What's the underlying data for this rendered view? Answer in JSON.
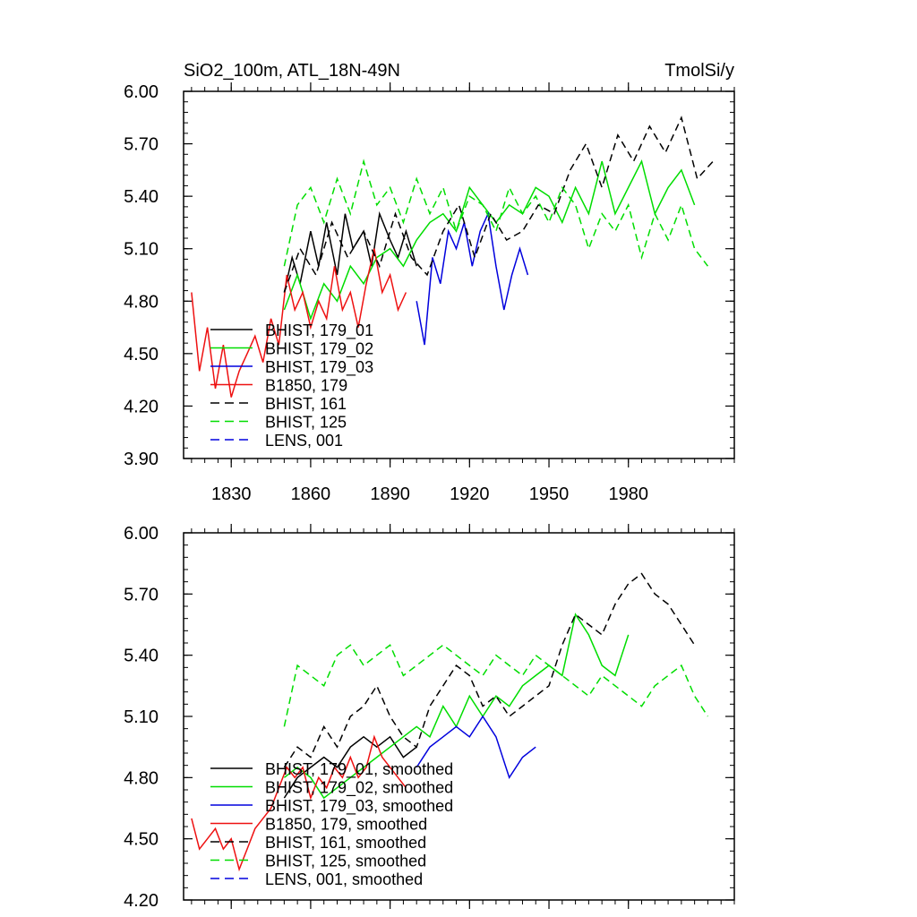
{
  "chart_data": [
    {
      "type": "line",
      "title_left": "SiO2_100m, ATL_18N-49N",
      "title_right": "TmolSi/y",
      "xlabel": "",
      "ylabel": "",
      "xlim": [
        1812,
        2020
      ],
      "ylim": [
        3.9,
        6.0
      ],
      "xticks": [
        1830,
        1860,
        1890,
        1920,
        1950,
        1980
      ],
      "xtick_labels": [
        "1830",
        "1860",
        "1890",
        "1920",
        "1950",
        "1980"
      ],
      "yticks": [
        3.9,
        4.2,
        4.5,
        4.8,
        5.1,
        5.4,
        5.7,
        6.0
      ],
      "ytick_labels": [
        "3.90",
        "4.20",
        "4.50",
        "4.80",
        "5.10",
        "5.40",
        "5.70",
        "6.00"
      ],
      "legend_position": "bottom-left",
      "series": [
        {
          "name": "BHIST, 179_01",
          "color": "#000000",
          "dash": "solid",
          "x": [
            1850,
            1853,
            1856,
            1860,
            1863,
            1866,
            1870,
            1873,
            1876,
            1880,
            1883,
            1886,
            1890,
            1893,
            1896,
            1900
          ],
          "y": [
            4.85,
            5.05,
            4.9,
            5.2,
            5.0,
            5.25,
            4.95,
            5.3,
            5.1,
            5.2,
            5.0,
            5.3,
            5.15,
            5.05,
            5.2,
            5.0
          ]
        },
        {
          "name": "BHIST, 179_02",
          "color": "#00dd00",
          "dash": "solid",
          "x": [
            1850,
            1855,
            1860,
            1865,
            1870,
            1875,
            1880,
            1885,
            1890,
            1895,
            1900,
            1905,
            1910,
            1915,
            1920,
            1925,
            1930,
            1935,
            1940,
            1945,
            1950,
            1955,
            1960,
            1965,
            1970,
            1975,
            1980,
            1985,
            1990,
            1995,
            2000,
            2005
          ],
          "y": [
            4.75,
            4.95,
            4.7,
            4.9,
            4.8,
            5.0,
            4.9,
            5.05,
            5.1,
            5.0,
            5.15,
            5.25,
            5.3,
            5.2,
            5.45,
            5.35,
            5.25,
            5.35,
            5.3,
            5.45,
            5.4,
            5.25,
            5.45,
            5.3,
            5.6,
            5.3,
            5.45,
            5.6,
            5.3,
            5.45,
            5.55,
            5.35
          ]
        },
        {
          "name": "BHIST, 179_03",
          "color": "#0000dd",
          "dash": "solid",
          "x": [
            1900,
            1903,
            1906,
            1909,
            1912,
            1915,
            1918,
            1921,
            1924,
            1927,
            1930,
            1933,
            1936,
            1939,
            1942
          ],
          "y": [
            4.8,
            4.55,
            5.05,
            4.9,
            5.2,
            5.1,
            5.25,
            5.0,
            5.2,
            5.3,
            5.0,
            4.75,
            4.95,
            5.1,
            4.95
          ]
        },
        {
          "name": "B1850, 179",
          "color": "#ee1111",
          "dash": "solid",
          "x": [
            1815,
            1818,
            1821,
            1824,
            1827,
            1830,
            1833,
            1836,
            1839,
            1842,
            1845,
            1848,
            1851,
            1854,
            1857,
            1860,
            1863,
            1866,
            1869,
            1872,
            1875,
            1878,
            1881,
            1884,
            1887,
            1890,
            1893,
            1896
          ],
          "y": [
            4.85,
            4.4,
            4.65,
            4.3,
            4.55,
            4.25,
            4.4,
            4.5,
            4.6,
            4.45,
            4.7,
            4.55,
            4.95,
            4.75,
            4.85,
            4.65,
            4.8,
            4.7,
            5.0,
            4.75,
            4.85,
            4.65,
            4.9,
            5.1,
            4.85,
            4.95,
            4.75,
            4.85
          ]
        },
        {
          "name": "BHIST, 161",
          "color": "#000000",
          "dash": "dashed",
          "x": [
            1850,
            1856,
            1862,
            1868,
            1874,
            1880,
            1886,
            1892,
            1898,
            1904,
            1910,
            1916,
            1922,
            1928,
            1934,
            1940,
            1946,
            1952,
            1958,
            1964,
            1970,
            1976,
            1982,
            1988,
            1994,
            2000,
            2006,
            2012
          ],
          "y": [
            4.85,
            5.1,
            4.95,
            5.25,
            5.05,
            5.2,
            5.0,
            5.3,
            5.05,
            4.95,
            5.2,
            5.35,
            5.05,
            5.3,
            5.15,
            5.2,
            5.35,
            5.3,
            5.55,
            5.7,
            5.45,
            5.75,
            5.6,
            5.8,
            5.65,
            5.85,
            5.5,
            5.6
          ]
        },
        {
          "name": "BHIST, 125",
          "color": "#00dd00",
          "dash": "dashed",
          "x": [
            1850,
            1855,
            1860,
            1865,
            1870,
            1875,
            1880,
            1885,
            1890,
            1895,
            1900,
            1905,
            1910,
            1915,
            1920,
            1925,
            1930,
            1935,
            1940,
            1945,
            1950,
            1955,
            1960,
            1965,
            1970,
            1975,
            1980,
            1985,
            1990,
            1995,
            2000,
            2005,
            2010
          ],
          "y": [
            5.0,
            5.35,
            5.45,
            5.25,
            5.5,
            5.3,
            5.6,
            5.35,
            5.45,
            5.25,
            5.5,
            5.3,
            5.45,
            5.2,
            5.4,
            5.35,
            5.2,
            5.45,
            5.3,
            5.4,
            5.25,
            5.45,
            5.35,
            5.1,
            5.3,
            5.2,
            5.35,
            5.05,
            5.3,
            5.15,
            5.35,
            5.1,
            5.0
          ]
        },
        {
          "name": "LENS, 001",
          "color": "#0000dd",
          "dash": "dashed",
          "x": [],
          "y": []
        }
      ]
    },
    {
      "type": "line",
      "xlabel": "",
      "ylabel": "",
      "xlim": [
        1812,
        2020
      ],
      "ylim": [
        4.2,
        6.0
      ],
      "xticks": [
        1830,
        1860,
        1890,
        1920,
        1950,
        1980
      ],
      "yticks": [
        4.2,
        4.5,
        4.8,
        5.1,
        5.4,
        5.7,
        6.0
      ],
      "ytick_labels": [
        "4.20",
        "4.50",
        "4.80",
        "5.10",
        "5.40",
        "5.70",
        "6.00"
      ],
      "legend_position": "bottom-left",
      "series": [
        {
          "name": "BHIST, 179_01, smoothed",
          "color": "#000000",
          "dash": "solid",
          "x": [
            1850,
            1855,
            1860,
            1865,
            1870,
            1875,
            1880,
            1885,
            1890,
            1895,
            1900
          ],
          "y": [
            4.7,
            4.8,
            4.85,
            4.9,
            4.85,
            4.95,
            5.0,
            4.95,
            5.0,
            4.9,
            4.95
          ]
        },
        {
          "name": "BHIST, 179_02, smoothed",
          "color": "#00dd00",
          "dash": "solid",
          "x": [
            1850,
            1855,
            1860,
            1865,
            1870,
            1875,
            1880,
            1885,
            1890,
            1895,
            1900,
            1905,
            1910,
            1915,
            1920,
            1925,
            1930,
            1935,
            1940,
            1945,
            1950,
            1955,
            1960,
            1965,
            1970,
            1975,
            1980
          ],
          "y": [
            4.8,
            4.85,
            4.8,
            4.7,
            4.75,
            4.8,
            4.85,
            4.9,
            4.95,
            5.0,
            5.05,
            5.0,
            5.15,
            5.05,
            5.2,
            5.1,
            5.2,
            5.15,
            5.25,
            5.3,
            5.35,
            5.3,
            5.6,
            5.5,
            5.35,
            5.3,
            5.5
          ]
        },
        {
          "name": "BHIST, 179_03, smoothed",
          "color": "#0000dd",
          "dash": "solid",
          "x": [
            1900,
            1905,
            1910,
            1915,
            1920,
            1925,
            1930,
            1935,
            1940,
            1945
          ],
          "y": [
            4.85,
            4.95,
            5.0,
            5.05,
            5.0,
            5.1,
            5.0,
            4.8,
            4.9,
            4.95
          ]
        },
        {
          "name": "B1850, 179, smoothed",
          "color": "#ee1111",
          "dash": "solid",
          "x": [
            1815,
            1818,
            1821,
            1824,
            1827,
            1830,
            1833,
            1836,
            1839,
            1842,
            1845,
            1848,
            1851,
            1854,
            1857,
            1860,
            1863,
            1866,
            1869,
            1872,
            1875,
            1878,
            1881,
            1884,
            1887,
            1890,
            1893,
            1896
          ],
          "y": [
            4.6,
            4.45,
            4.5,
            4.55,
            4.45,
            4.5,
            4.35,
            4.45,
            4.55,
            4.6,
            4.65,
            4.75,
            4.85,
            4.8,
            4.85,
            4.7,
            4.8,
            4.75,
            4.85,
            4.8,
            4.9,
            4.8,
            4.85,
            5.0,
            4.9,
            4.85,
            4.8,
            4.75
          ]
        },
        {
          "name": "BHIST, 161, smoothed",
          "color": "#000000",
          "dash": "dashed",
          "x": [
            1850,
            1855,
            1860,
            1865,
            1870,
            1875,
            1880,
            1885,
            1890,
            1895,
            1900,
            1905,
            1910,
            1915,
            1920,
            1925,
            1930,
            1935,
            1940,
            1945,
            1950,
            1955,
            1960,
            1965,
            1970,
            1975,
            1980,
            1985,
            1990,
            1995,
            2000,
            2005
          ],
          "y": [
            4.85,
            4.95,
            4.9,
            5.05,
            4.95,
            5.1,
            5.15,
            5.25,
            5.1,
            5.0,
            4.95,
            5.15,
            5.25,
            5.35,
            5.3,
            5.15,
            5.2,
            5.1,
            5.15,
            5.2,
            5.25,
            5.45,
            5.6,
            5.55,
            5.5,
            5.65,
            5.75,
            5.8,
            5.7,
            5.65,
            5.55,
            5.45
          ]
        },
        {
          "name": "BHIST, 125, smoothed",
          "color": "#00dd00",
          "dash": "dashed",
          "x": [
            1850,
            1855,
            1860,
            1865,
            1870,
            1875,
            1880,
            1885,
            1890,
            1895,
            1900,
            1905,
            1910,
            1915,
            1920,
            1925,
            1930,
            1935,
            1940,
            1945,
            1950,
            1955,
            1960,
            1965,
            1970,
            1975,
            1980,
            1985,
            1990,
            1995,
            2000,
            2005,
            2010
          ],
          "y": [
            5.05,
            5.35,
            5.3,
            5.25,
            5.4,
            5.45,
            5.35,
            5.4,
            5.45,
            5.3,
            5.35,
            5.4,
            5.45,
            5.4,
            5.35,
            5.3,
            5.4,
            5.35,
            5.3,
            5.4,
            5.35,
            5.3,
            5.25,
            5.2,
            5.3,
            5.25,
            5.2,
            5.15,
            5.25,
            5.3,
            5.35,
            5.2,
            5.1
          ]
        },
        {
          "name": "LENS, 001, smoothed",
          "color": "#0000dd",
          "dash": "dashed",
          "x": [],
          "y": []
        }
      ]
    }
  ]
}
